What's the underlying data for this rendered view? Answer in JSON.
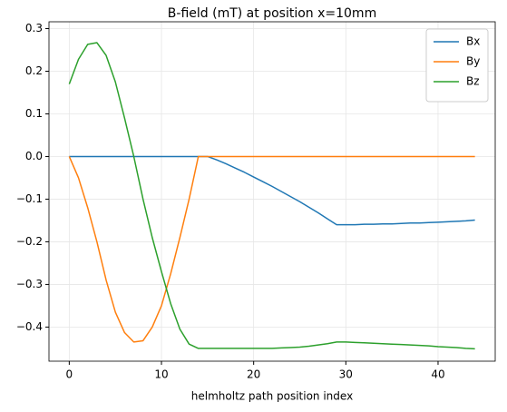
{
  "chart_data": {
    "type": "line",
    "title": "B-field (mT) at position x=10mm",
    "x_label": "helmholtz path position index",
    "x": [
      0,
      1,
      2,
      3,
      4,
      5,
      6,
      7,
      8,
      9,
      10,
      11,
      12,
      13,
      14,
      15,
      16,
      17,
      18,
      19,
      20,
      21,
      22,
      23,
      24,
      25,
      26,
      27,
      28,
      29,
      30,
      31,
      32,
      33,
      34,
      35,
      36,
      37,
      38,
      39,
      40,
      41,
      42,
      43,
      44
    ],
    "series": [
      {
        "name": "Bx",
        "color": "#1f77b4",
        "values": [
          0,
          0,
          0,
          0,
          0,
          0,
          0,
          0,
          0,
          0,
          0,
          0,
          0,
          0,
          0,
          0,
          -0.008,
          -0.017,
          -0.027,
          -0.037,
          -0.048,
          -0.059,
          -0.07,
          -0.082,
          -0.094,
          -0.106,
          -0.119,
          -0.132,
          -0.146,
          -0.16,
          -0.16,
          -0.16,
          -0.159,
          -0.159,
          -0.158,
          -0.158,
          -0.157,
          -0.156,
          -0.156,
          -0.155,
          -0.154,
          -0.153,
          -0.152,
          -0.151,
          -0.149
        ]
      },
      {
        "name": "By",
        "color": "#ff7f0e",
        "values": [
          0,
          -0.05,
          -0.12,
          -0.2,
          -0.29,
          -0.365,
          -0.413,
          -0.435,
          -0.432,
          -0.4,
          -0.35,
          -0.275,
          -0.19,
          -0.1,
          0,
          0,
          0,
          0,
          0,
          0,
          0,
          0,
          0,
          0,
          0,
          0,
          0,
          0,
          0,
          0,
          0,
          0,
          0,
          0,
          0,
          0,
          0,
          0,
          0,
          0,
          0,
          0,
          0,
          0,
          0
        ]
      },
      {
        "name": "Bz",
        "color": "#2ca02c",
        "values": [
          0.17,
          0.228,
          0.263,
          0.267,
          0.237,
          0.175,
          0.09,
          0,
          -0.1,
          -0.19,
          -0.27,
          -0.345,
          -0.405,
          -0.44,
          -0.45,
          -0.45,
          -0.45,
          -0.45,
          -0.45,
          -0.45,
          -0.45,
          -0.45,
          -0.45,
          -0.449,
          -0.448,
          -0.447,
          -0.445,
          -0.442,
          -0.439,
          -0.435,
          -0.435,
          -0.436,
          -0.437,
          -0.438,
          -0.439,
          -0.44,
          -0.441,
          -0.442,
          -0.443,
          -0.444,
          -0.446,
          -0.447,
          -0.448,
          -0.45,
          -0.451
        ]
      }
    ],
    "xlim": [
      -2.2,
      46.2
    ],
    "xticks": [
      0,
      10,
      20,
      30,
      40
    ],
    "ylim": [
      -0.48,
      0.316
    ],
    "yticks": [
      {
        "value": -0.4,
        "label": "−0.4"
      },
      {
        "value": -0.3,
        "label": "−0.3"
      },
      {
        "value": -0.2,
        "label": "−0.2"
      },
      {
        "value": -0.1,
        "label": "−0.1"
      },
      {
        "value": 0,
        "label": "0.0"
      },
      0.1,
      0.2,
      0.3
    ],
    "grid": true,
    "legend": "upper-right"
  }
}
